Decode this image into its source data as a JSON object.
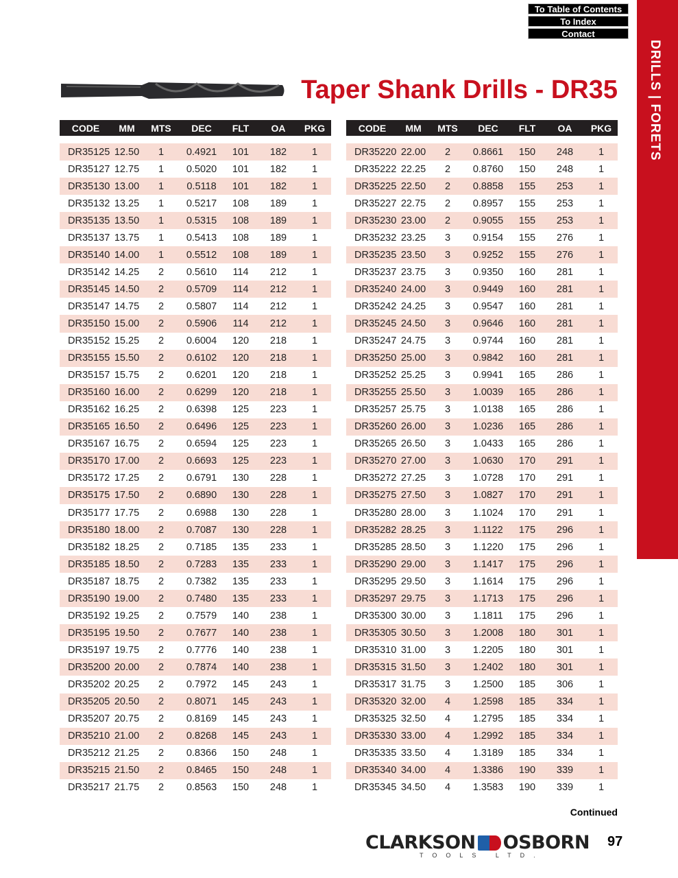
{
  "nav": {
    "toc": "To Table of Contents",
    "index": "To Index",
    "contact": "Contact"
  },
  "sidebar": {
    "label": "DRILLS | FORETS"
  },
  "title": "Taper Shank Drills - DR35",
  "colors": {
    "accent": "#c8101e",
    "header_bg": "#231f20",
    "row_stripe": "#f8dcd4"
  },
  "columns": [
    "CODE",
    "MM",
    "MTS",
    "DEC",
    "FLT",
    "OA",
    "PKG"
  ],
  "tables": [
    [
      [
        "DR35125",
        "12.50",
        "1",
        "0.4921",
        "101",
        "182",
        "1"
      ],
      [
        "DR35127",
        "12.75",
        "1",
        "0.5020",
        "101",
        "182",
        "1"
      ],
      [
        "DR35130",
        "13.00",
        "1",
        "0.5118",
        "101",
        "182",
        "1"
      ],
      [
        "DR35132",
        "13.25",
        "1",
        "0.5217",
        "108",
        "189",
        "1"
      ],
      [
        "DR35135",
        "13.50",
        "1",
        "0.5315",
        "108",
        "189",
        "1"
      ],
      [
        "DR35137",
        "13.75",
        "1",
        "0.5413",
        "108",
        "189",
        "1"
      ],
      [
        "DR35140",
        "14.00",
        "1",
        "0.5512",
        "108",
        "189",
        "1"
      ],
      [
        "DR35142",
        "14.25",
        "2",
        "0.5610",
        "114",
        "212",
        "1"
      ],
      [
        "DR35145",
        "14.50",
        "2",
        "0.5709",
        "114",
        "212",
        "1"
      ],
      [
        "DR35147",
        "14.75",
        "2",
        "0.5807",
        "114",
        "212",
        "1"
      ],
      [
        "DR35150",
        "15.00",
        "2",
        "0.5906",
        "114",
        "212",
        "1"
      ],
      [
        "DR35152",
        "15.25",
        "2",
        "0.6004",
        "120",
        "218",
        "1"
      ],
      [
        "DR35155",
        "15.50",
        "2",
        "0.6102",
        "120",
        "218",
        "1"
      ],
      [
        "DR35157",
        "15.75",
        "2",
        "0.6201",
        "120",
        "218",
        "1"
      ],
      [
        "DR35160",
        "16.00",
        "2",
        "0.6299",
        "120",
        "218",
        "1"
      ],
      [
        "DR35162",
        "16.25",
        "2",
        "0.6398",
        "125",
        "223",
        "1"
      ],
      [
        "DR35165",
        "16.50",
        "2",
        "0.6496",
        "125",
        "223",
        "1"
      ],
      [
        "DR35167",
        "16.75",
        "2",
        "0.6594",
        "125",
        "223",
        "1"
      ],
      [
        "DR35170",
        "17.00",
        "2",
        "0.6693",
        "125",
        "223",
        "1"
      ],
      [
        "DR35172",
        "17.25",
        "2",
        "0.6791",
        "130",
        "228",
        "1"
      ],
      [
        "DR35175",
        "17.50",
        "2",
        "0.6890",
        "130",
        "228",
        "1"
      ],
      [
        "DR35177",
        "17.75",
        "2",
        "0.6988",
        "130",
        "228",
        "1"
      ],
      [
        "DR35180",
        "18.00",
        "2",
        "0.7087",
        "130",
        "228",
        "1"
      ],
      [
        "DR35182",
        "18.25",
        "2",
        "0.7185",
        "135",
        "233",
        "1"
      ],
      [
        "DR35185",
        "18.50",
        "2",
        "0.7283",
        "135",
        "233",
        "1"
      ],
      [
        "DR35187",
        "18.75",
        "2",
        "0.7382",
        "135",
        "233",
        "1"
      ],
      [
        "DR35190",
        "19.00",
        "2",
        "0.7480",
        "135",
        "233",
        "1"
      ],
      [
        "DR35192",
        "19.25",
        "2",
        "0.7579",
        "140",
        "238",
        "1"
      ],
      [
        "DR35195",
        "19.50",
        "2",
        "0.7677",
        "140",
        "238",
        "1"
      ],
      [
        "DR35197",
        "19.75",
        "2",
        "0.7776",
        "140",
        "238",
        "1"
      ],
      [
        "DR35200",
        "20.00",
        "2",
        "0.7874",
        "140",
        "238",
        "1"
      ],
      [
        "DR35202",
        "20.25",
        "2",
        "0.7972",
        "145",
        "243",
        "1"
      ],
      [
        "DR35205",
        "20.50",
        "2",
        "0.8071",
        "145",
        "243",
        "1"
      ],
      [
        "DR35207",
        "20.75",
        "2",
        "0.8169",
        "145",
        "243",
        "1"
      ],
      [
        "DR35210",
        "21.00",
        "2",
        "0.8268",
        "145",
        "243",
        "1"
      ],
      [
        "DR35212",
        "21.25",
        "2",
        "0.8366",
        "150",
        "248",
        "1"
      ],
      [
        "DR35215",
        "21.50",
        "2",
        "0.8465",
        "150",
        "248",
        "1"
      ],
      [
        "DR35217",
        "21.75",
        "2",
        "0.8563",
        "150",
        "248",
        "1"
      ]
    ],
    [
      [
        "DR35220",
        "22.00",
        "2",
        "0.8661",
        "150",
        "248",
        "1"
      ],
      [
        "DR35222",
        "22.25",
        "2",
        "0.8760",
        "150",
        "248",
        "1"
      ],
      [
        "DR35225",
        "22.50",
        "2",
        "0.8858",
        "155",
        "253",
        "1"
      ],
      [
        "DR35227",
        "22.75",
        "2",
        "0.8957",
        "155",
        "253",
        "1"
      ],
      [
        "DR35230",
        "23.00",
        "2",
        "0.9055",
        "155",
        "253",
        "1"
      ],
      [
        "DR35232",
        "23.25",
        "3",
        "0.9154",
        "155",
        "276",
        "1"
      ],
      [
        "DR35235",
        "23.50",
        "3",
        "0.9252",
        "155",
        "276",
        "1"
      ],
      [
        "DR35237",
        "23.75",
        "3",
        "0.9350",
        "160",
        "281",
        "1"
      ],
      [
        "DR35240",
        "24.00",
        "3",
        "0.9449",
        "160",
        "281",
        "1"
      ],
      [
        "DR35242",
        "24.25",
        "3",
        "0.9547",
        "160",
        "281",
        "1"
      ],
      [
        "DR35245",
        "24.50",
        "3",
        "0.9646",
        "160",
        "281",
        "1"
      ],
      [
        "DR35247",
        "24.75",
        "3",
        "0.9744",
        "160",
        "281",
        "1"
      ],
      [
        "DR35250",
        "25.00",
        "3",
        "0.9842",
        "160",
        "281",
        "1"
      ],
      [
        "DR35252",
        "25.25",
        "3",
        "0.9941",
        "165",
        "286",
        "1"
      ],
      [
        "DR35255",
        "25.50",
        "3",
        "1.0039",
        "165",
        "286",
        "1"
      ],
      [
        "DR35257",
        "25.75",
        "3",
        "1.0138",
        "165",
        "286",
        "1"
      ],
      [
        "DR35260",
        "26.00",
        "3",
        "1.0236",
        "165",
        "286",
        "1"
      ],
      [
        "DR35265",
        "26.50",
        "3",
        "1.0433",
        "165",
        "286",
        "1"
      ],
      [
        "DR35270",
        "27.00",
        "3",
        "1.0630",
        "170",
        "291",
        "1"
      ],
      [
        "DR35272",
        "27.25",
        "3",
        "1.0728",
        "170",
        "291",
        "1"
      ],
      [
        "DR35275",
        "27.50",
        "3",
        "1.0827",
        "170",
        "291",
        "1"
      ],
      [
        "DR35280",
        "28.00",
        "3",
        "1.1024",
        "170",
        "291",
        "1"
      ],
      [
        "DR35282",
        "28.25",
        "3",
        "1.1122",
        "175",
        "296",
        "1"
      ],
      [
        "DR35285",
        "28.50",
        "3",
        "1.1220",
        "175",
        "296",
        "1"
      ],
      [
        "DR35290",
        "29.00",
        "3",
        "1.1417",
        "175",
        "296",
        "1"
      ],
      [
        "DR35295",
        "29.50",
        "3",
        "1.1614",
        "175",
        "296",
        "1"
      ],
      [
        "DR35297",
        "29.75",
        "3",
        "1.1713",
        "175",
        "296",
        "1"
      ],
      [
        "DR35300",
        "30.00",
        "3",
        "1.1811",
        "175",
        "296",
        "1"
      ],
      [
        "DR35305",
        "30.50",
        "3",
        "1.2008",
        "180",
        "301",
        "1"
      ],
      [
        "DR35310",
        "31.00",
        "3",
        "1.2205",
        "180",
        "301",
        "1"
      ],
      [
        "DR35315",
        "31.50",
        "3",
        "1.2402",
        "180",
        "301",
        "1"
      ],
      [
        "DR35317",
        "31.75",
        "3",
        "1.2500",
        "185",
        "306",
        "1"
      ],
      [
        "DR35320",
        "32.00",
        "4",
        "1.2598",
        "185",
        "334",
        "1"
      ],
      [
        "DR35325",
        "32.50",
        "4",
        "1.2795",
        "185",
        "334",
        "1"
      ],
      [
        "DR35330",
        "33.00",
        "4",
        "1.2992",
        "185",
        "334",
        "1"
      ],
      [
        "DR35335",
        "33.50",
        "4",
        "1.3189",
        "185",
        "334",
        "1"
      ],
      [
        "DR35340",
        "34.00",
        "4",
        "1.3386",
        "190",
        "339",
        "1"
      ],
      [
        "DR35345",
        "34.50",
        "4",
        "1.3583",
        "190",
        "339",
        "1"
      ]
    ]
  ],
  "footer": {
    "continued": "Continued",
    "brand_left": "CLARKSON",
    "brand_right": "OSBORN",
    "brand_sub": "TOOLS LTD.",
    "page_number": "97"
  }
}
